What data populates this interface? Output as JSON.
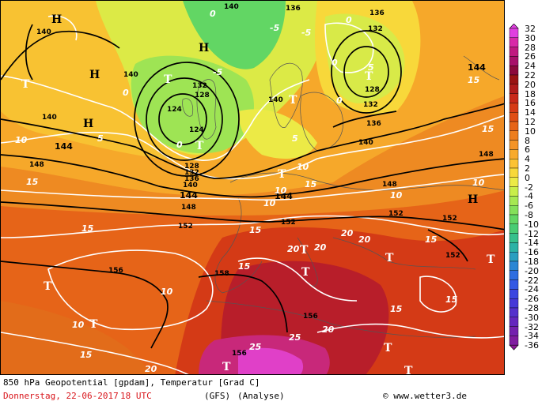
{
  "map": {
    "type": "weather-map",
    "field": "850 hPa geopotential and temperature",
    "geopotential_labels": [
      "124",
      "128",
      "132",
      "136",
      "140",
      "144",
      "148",
      "152",
      "156",
      "158"
    ],
    "temperature_labels": [
      "-5",
      "0",
      "5",
      "10",
      "15",
      "20",
      "25"
    ],
    "pressure_markers": {
      "high": "H",
      "low": "T"
    }
  },
  "scale": {
    "values": [
      "32",
      "30",
      "28",
      "26",
      "24",
      "22",
      "20",
      "18",
      "16",
      "14",
      "12",
      "10",
      "8",
      "6",
      "4",
      "2",
      "0",
      "-2",
      "-4",
      "-6",
      "-8",
      "-10",
      "-12",
      "-14",
      "-16",
      "-18",
      "-20",
      "-22",
      "-24",
      "-26",
      "-28",
      "-30",
      "-32",
      "-34",
      "-36"
    ],
    "colors": [
      "#e040e0",
      "#d82aa8",
      "#c01a80",
      "#a8106a",
      "#8c0a3c",
      "#9a1414",
      "#b01c1c",
      "#c8281a",
      "#d63a16",
      "#e04e14",
      "#e66418",
      "#ee7e1e",
      "#f49426",
      "#f8aa2c",
      "#fcc232",
      "#f8d83a",
      "#ecea46",
      "#c8ee4a",
      "#a6e852",
      "#84e05a",
      "#62d664",
      "#48cc74",
      "#36c08c",
      "#2cb2a6",
      "#2a9ec0",
      "#2a86d4",
      "#2e6ee0",
      "#3458e4",
      "#3c46e0",
      "#4638d8",
      "#5430cc",
      "#6426be",
      "#7420ae",
      "#801ca0",
      "#8a1896"
    ]
  },
  "footer": {
    "title": "850 hPa Geopotential [gpdam], Temperatur [Grad C]",
    "date": "Donnerstag, 22-06-2017",
    "time": "18 UTC",
    "model": "(GFS)",
    "analysis": "(Analyse)",
    "copyright": "© www.wetter3.de"
  }
}
